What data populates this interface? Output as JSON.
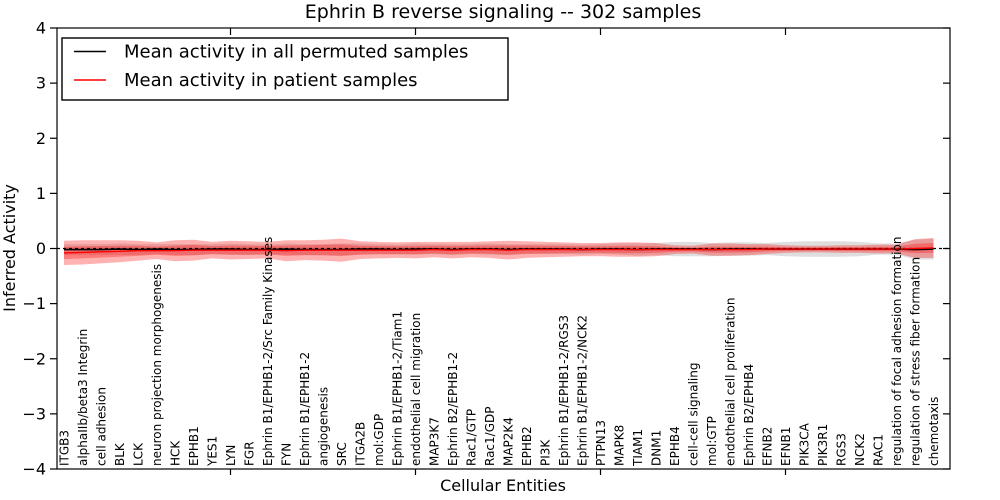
{
  "figure": {
    "background": "#ffffff"
  },
  "chart_data": {
    "type": "line",
    "title": "Ephrin B reverse signaling -- 302 samples",
    "xlabel": "Cellular Entities",
    "ylabel": "Inferred Activity",
    "ylim": [
      -4,
      4
    ],
    "grid": false,
    "legend_position": "upper left",
    "ytick_values": [
      4,
      3,
      2,
      1,
      0,
      -1,
      -2,
      -3,
      -4
    ],
    "ytick_labels": [
      "4",
      "3",
      "2",
      "1",
      "0",
      "−1",
      "−2",
      "−3",
      "−4"
    ],
    "x_major_tick_indices": [
      9,
      19,
      29,
      39
    ],
    "categories": [
      "ITGB3",
      "alphaIIb/beta3 Integrin",
      "cell adhesion",
      "BLK",
      "LCK",
      "neuron projection morphogenesis",
      "HCK",
      "EPHB1",
      "YES1",
      "LYN",
      "FGR",
      "Ephrin B1/EPHB1-2/Src Family Kinases",
      "FYN",
      "Ephrin B1/EPHB1-2",
      "angiogenesis",
      "SRC",
      "ITGA2B",
      "mol:GDP",
      "Ephrin B1/EPHB1-2/Tiam1",
      "endothelial cell migration",
      "MAP3K7",
      "Ephrin B2/EPHB1-2",
      "Rac1/GTP",
      "Rac1/GDP",
      "MAP2K4",
      "EPHB2",
      "PI3K",
      "Ephrin B1/EPHB1-2/RGS3",
      "Ephrin B1/EPHB1-2/NCK2",
      "PTPN13",
      "MAPK8",
      "TIAM1",
      "DNM1",
      "EPHB4",
      "cell-cell signaling",
      "mol:GTP",
      "endothelial cell proliferation",
      "Ephrin B2/EPHB4",
      "EFNB2",
      "EFNB1",
      "PIK3CA",
      "PIK3R1",
      "RGS3",
      "NCK2",
      "RAC1",
      "regulation of focal adhesion formation",
      "regulation of stress fiber formation",
      "chemotaxis"
    ],
    "zero_line": {
      "value": 0,
      "color": "#000000",
      "style": "dashed"
    },
    "series": [
      {
        "name": "Mean activity in all permuted samples",
        "color": "#000000",
        "band_fill": "rgba(0,0,0,0.13)",
        "inner_band_scale": 0,
        "mean": [
          -0.02,
          -0.02,
          -0.02,
          -0.01,
          -0.02,
          -0.01,
          -0.02,
          -0.02,
          -0.01,
          -0.01,
          -0.02,
          -0.02,
          -0.01,
          -0.02,
          -0.02,
          -0.02,
          -0.01,
          -0.01,
          -0.02,
          -0.01,
          -0.01,
          -0.02,
          -0.01,
          -0.01,
          -0.02,
          -0.01,
          -0.01,
          -0.01,
          -0.02,
          -0.01,
          -0.01,
          -0.02,
          -0.01,
          -0.01,
          -0.01,
          -0.02,
          -0.01,
          -0.01,
          -0.01,
          -0.01,
          -0.01,
          -0.01,
          -0.01,
          -0.01,
          -0.01,
          -0.01,
          -0.02,
          -0.01
        ],
        "std": [
          0.1,
          0.1,
          0.1,
          0.1,
          0.1,
          0.09,
          0.1,
          0.1,
          0.09,
          0.1,
          0.1,
          0.09,
          0.1,
          0.1,
          0.1,
          0.11,
          0.1,
          0.09,
          0.09,
          0.1,
          0.09,
          0.1,
          0.09,
          0.1,
          0.1,
          0.09,
          0.09,
          0.09,
          0.09,
          0.09,
          0.1,
          0.11,
          0.11,
          0.13,
          0.13,
          0.12,
          0.12,
          0.12,
          0.11,
          0.13,
          0.14,
          0.14,
          0.14,
          0.13,
          0.1,
          0.1,
          0.18,
          0.19
        ]
      },
      {
        "name": "Mean activity in patient samples",
        "color": "#ff0000",
        "band_fill": "rgba(255,0,0,0.30)",
        "inner_band_scale": 0.5,
        "mean": [
          -0.08,
          -0.07,
          -0.06,
          -0.05,
          -0.04,
          -0.04,
          -0.04,
          -0.03,
          -0.03,
          -0.03,
          -0.03,
          -0.03,
          -0.04,
          -0.03,
          -0.03,
          -0.03,
          -0.03,
          -0.03,
          -0.03,
          -0.03,
          -0.02,
          -0.03,
          -0.02,
          -0.02,
          -0.03,
          -0.02,
          -0.02,
          -0.02,
          -0.02,
          -0.02,
          -0.02,
          -0.02,
          -0.02,
          -0.02,
          -0.02,
          -0.02,
          -0.02,
          -0.02,
          -0.01,
          -0.01,
          -0.01,
          -0.01,
          -0.01,
          -0.01,
          -0.01,
          -0.01,
          0.0,
          0.01
        ],
        "std": [
          0.22,
          0.22,
          0.21,
          0.2,
          0.18,
          0.15,
          0.19,
          0.19,
          0.15,
          0.17,
          0.16,
          0.15,
          0.19,
          0.18,
          0.19,
          0.21,
          0.16,
          0.15,
          0.14,
          0.15,
          0.14,
          0.15,
          0.14,
          0.15,
          0.17,
          0.15,
          0.14,
          0.13,
          0.12,
          0.12,
          0.13,
          0.13,
          0.12,
          0.08,
          0.07,
          0.11,
          0.11,
          0.1,
          0.09,
          0.07,
          0.06,
          0.06,
          0.07,
          0.07,
          0.08,
          0.08,
          0.17,
          0.18
        ]
      }
    ]
  }
}
